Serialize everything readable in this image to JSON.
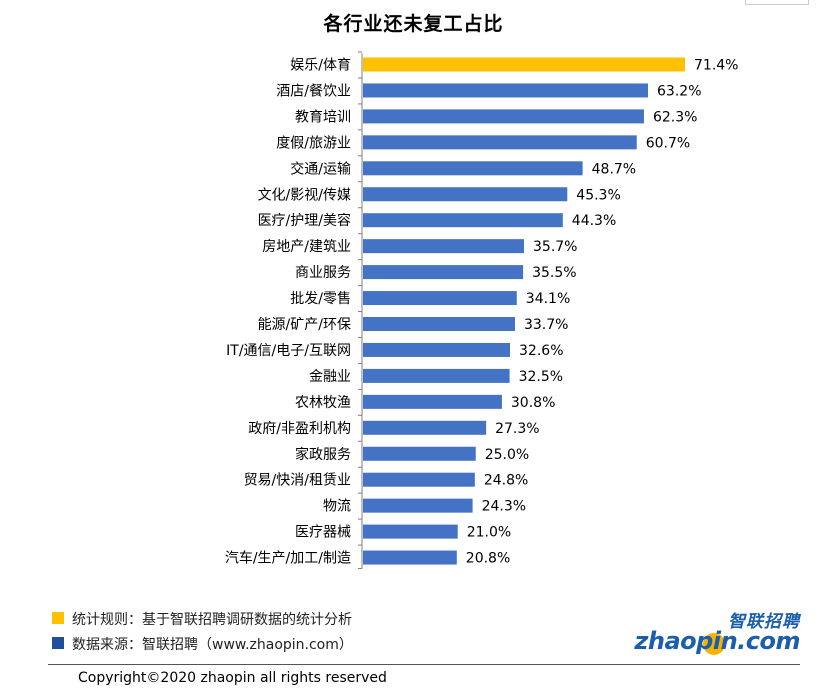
{
  "chart_data": {
    "type": "bar",
    "orientation": "horizontal",
    "title": "各行业还未复工占比",
    "categories": [
      "娱乐/体育",
      "酒店/餐饮业",
      "教育培训",
      "度假/旅游业",
      "交通/运输",
      "文化/影视/传媒",
      "医疗/护理/美容",
      "房地产/建筑业",
      "商业服务",
      "批发/零售",
      "能源/矿产/环保",
      "IT/通信/电子/互联网",
      "金融业",
      "农林牧渔",
      "政府/非盈利机构",
      "家政服务",
      "贸易/快消/租赁业",
      "物流",
      "医疗器械",
      "汽车/生产/加工/制造"
    ],
    "values": [
      71.4,
      63.2,
      62.3,
      60.7,
      48.7,
      45.3,
      44.3,
      35.7,
      35.5,
      34.1,
      33.7,
      32.6,
      32.5,
      30.8,
      27.3,
      25.0,
      24.8,
      24.3,
      21.0,
      20.8
    ],
    "value_labels": [
      "71.4%",
      "63.2%",
      "62.3%",
      "60.7%",
      "48.7%",
      "45.3%",
      "44.3%",
      "35.7%",
      "35.5%",
      "34.1%",
      "33.7%",
      "32.6%",
      "32.5%",
      "30.8%",
      "27.3%",
      "25.0%",
      "24.8%",
      "24.3%",
      "21.0%",
      "20.8%"
    ],
    "highlight_index": 0,
    "colors": {
      "highlight": "#ffc000",
      "bar": "#4472c4",
      "axis": "#7f7f7f"
    },
    "xlim": [
      0,
      75
    ],
    "grid": false
  },
  "notes": {
    "rule_text": "统计规则：基于智联招聘调研数据的统计分析",
    "source_text": "数据来源：智联招聘（www.zhaopin.com）",
    "rule_color": "#ffc000",
    "source_color": "#1f4e9b"
  },
  "logo": {
    "cn": "智联招聘",
    "en": "zhaopin.com"
  },
  "copyright": "Copyright©2020 zhaopin all rights reserved"
}
